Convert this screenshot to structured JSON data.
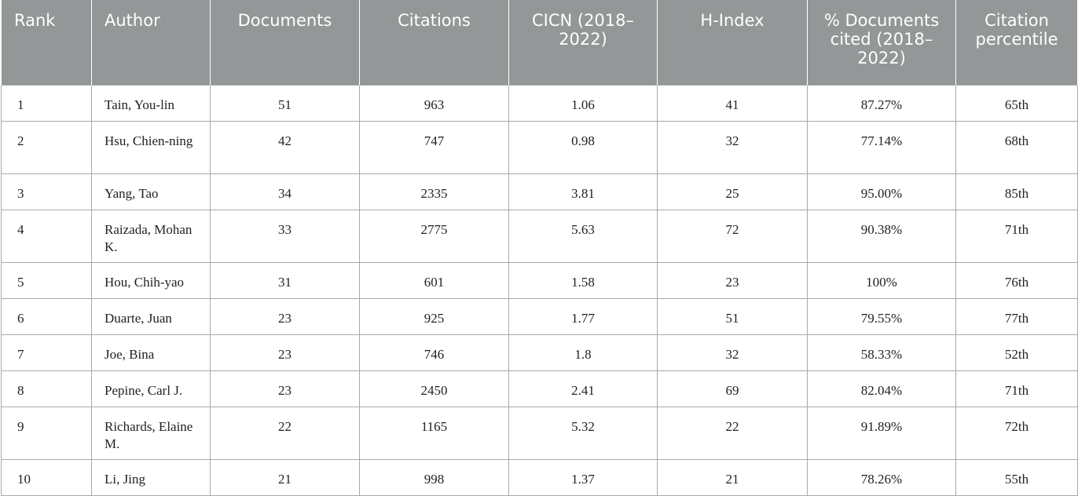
{
  "table": {
    "headers": [
      "Rank",
      "Author",
      "Documents",
      "Citations",
      "CICN (2018–2022)",
      "H-Index",
      "% Documents cited (2018–2022)",
      "Citation percentile"
    ],
    "rows": [
      {
        "rank": "1",
        "author": "Tain, You-lin",
        "documents": "51",
        "citations": "963",
        "cicn": "1.06",
        "h_index": "41",
        "pct_cited": "87.27%",
        "percentile": "65th"
      },
      {
        "rank": "2",
        "author": "Hsu, Chien-ning",
        "documents": "42",
        "citations": "747",
        "cicn": "0.98",
        "h_index": "32",
        "pct_cited": "77.14%",
        "percentile": "68th"
      },
      {
        "rank": "3",
        "author": "Yang, Tao",
        "documents": "34",
        "citations": "2335",
        "cicn": "3.81",
        "h_index": "25",
        "pct_cited": "95.00%",
        "percentile": "85th"
      },
      {
        "rank": "4",
        "author": "Raizada, Mohan K.",
        "documents": "33",
        "citations": "2775",
        "cicn": "5.63",
        "h_index": "72",
        "pct_cited": "90.38%",
        "percentile": "71th"
      },
      {
        "rank": "5",
        "author": "Hou, Chih-yao",
        "documents": "31",
        "citations": "601",
        "cicn": "1.58",
        "h_index": "23",
        "pct_cited": "100%",
        "percentile": "76th"
      },
      {
        "rank": "6",
        "author": "Duarte, Juan",
        "documents": "23",
        "citations": "925",
        "cicn": "1.77",
        "h_index": "51",
        "pct_cited": "79.55%",
        "percentile": "77th"
      },
      {
        "rank": "7",
        "author": "Joe, Bina",
        "documents": "23",
        "citations": "746",
        "cicn": "1.8",
        "h_index": "32",
        "pct_cited": "58.33%",
        "percentile": "52th"
      },
      {
        "rank": "8",
        "author": "Pepine, Carl J.",
        "documents": "23",
        "citations": "2450",
        "cicn": "2.41",
        "h_index": "69",
        "pct_cited": "82.04%",
        "percentile": "71th"
      },
      {
        "rank": "9",
        "author": "Richards, Elaine M.",
        "documents": "22",
        "citations": "1165",
        "cicn": "5.32",
        "h_index": "22",
        "pct_cited": "91.89%",
        "percentile": "72th"
      },
      {
        "rank": "10",
        "author": "Li, Jing",
        "documents": "21",
        "citations": "998",
        "cicn": "1.37",
        "h_index": "21",
        "pct_cited": "78.26%",
        "percentile": "55th"
      }
    ]
  }
}
